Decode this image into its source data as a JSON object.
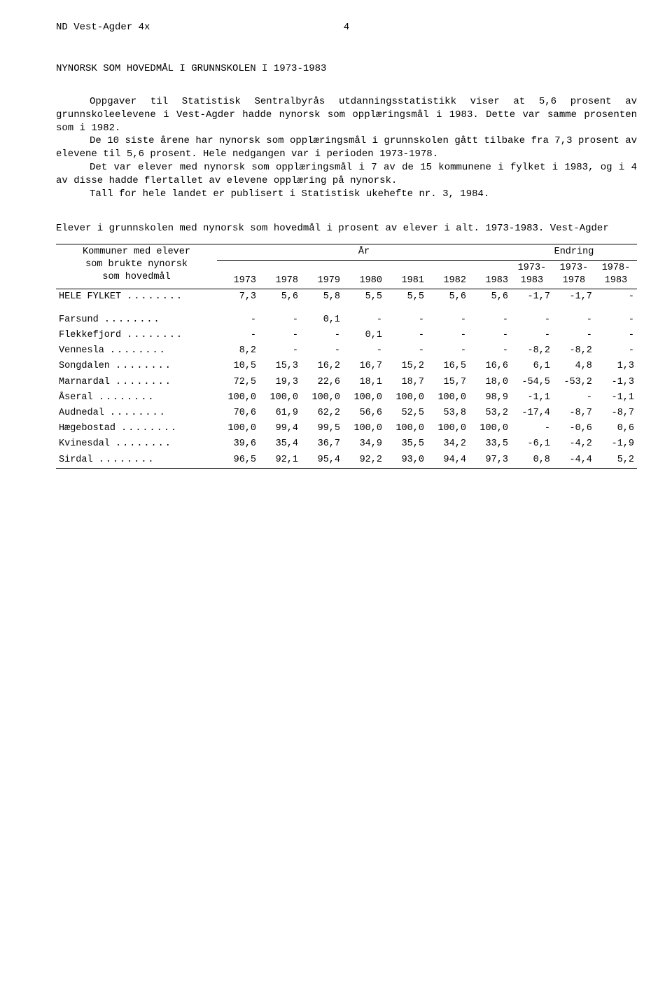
{
  "header": {
    "left": "ND  Vest-Agder  4x",
    "page": "4"
  },
  "title": "NYNORSK SOM HOVEDMÅL I GRUNNSKOLEN I 1973-1983",
  "paragraphs": [
    "Oppgaver til Statistisk Sentralbyrås utdanningsstatistikk viser at 5,6 prosent av grunnskoleelevene i Vest-Agder hadde nynorsk som opplæringsmål i 1983. Dette var samme prosenten som i 1982.",
    "De 10 siste årene har nynorsk som opplæringsmål i grunnskolen gått tilbake fra 7,3 prosent av elevene til 5,6 prosent. Hele nedgangen var i perioden 1973-1978.",
    "Det var elever med nynorsk som opplæringsmål i 7 av de 15 kommunene i fylket i 1983, og i 4 av disse hadde flertallet av elevene opplæring på nynorsk.",
    "Tall for hele landet er publisert i Statistisk ukehefte nr. 3, 1984."
  ],
  "table": {
    "caption": "Elever i grunnskolen med nynorsk som hovedmål i prosent av elever i alt.  1973-1983.  Vest-Agder",
    "stub_lines": [
      "Kommuner med elever",
      "som brukte nynorsk",
      "som hovedmål"
    ],
    "year_group": "År",
    "change_group": "Endring",
    "year_cols": [
      "1973",
      "1978",
      "1979",
      "1980",
      "1981",
      "1982",
      "1983"
    ],
    "change_cols": [
      {
        "top": "1973-",
        "bot": "1983"
      },
      {
        "top": "1973-",
        "bot": "1978"
      },
      {
        "top": "1978-",
        "bot": "1983"
      }
    ],
    "rows": [
      {
        "label": "HELE FYLKET",
        "v": [
          "7,3",
          "5,6",
          "5,8",
          "5,5",
          "5,5",
          "5,6",
          "5,6",
          "-1,7",
          "-1,7",
          "-"
        ],
        "gap_after": true
      },
      {
        "label": "Farsund",
        "v": [
          "-",
          "-",
          "0,1",
          "-",
          "-",
          "-",
          "-",
          "-",
          "-",
          "-"
        ]
      },
      {
        "label": "Flekkefjord",
        "v": [
          "-",
          "-",
          "-",
          "0,1",
          "-",
          "-",
          "-",
          "-",
          "-",
          "-"
        ]
      },
      {
        "label": "Vennesla",
        "v": [
          "8,2",
          "-",
          "-",
          "-",
          "-",
          "-",
          "-",
          "-8,2",
          "-8,2",
          "-"
        ]
      },
      {
        "label": "Songdalen",
        "v": [
          "10,5",
          "15,3",
          "16,2",
          "16,7",
          "15,2",
          "16,5",
          "16,6",
          "6,1",
          "4,8",
          "1,3"
        ]
      },
      {
        "label": "Marnardal",
        "v": [
          "72,5",
          "19,3",
          "22,6",
          "18,1",
          "18,7",
          "15,7",
          "18,0",
          "-54,5",
          "-53,2",
          "-1,3"
        ]
      },
      {
        "label": "Åseral",
        "v": [
          "100,0",
          "100,0",
          "100,0",
          "100,0",
          "100,0",
          "100,0",
          "98,9",
          "-1,1",
          "-",
          "-1,1"
        ]
      },
      {
        "label": "Audnedal",
        "v": [
          "70,6",
          "61,9",
          "62,2",
          "56,6",
          "52,5",
          "53,8",
          "53,2",
          "-17,4",
          "-8,7",
          "-8,7"
        ]
      },
      {
        "label": "Hægebostad",
        "v": [
          "100,0",
          "99,4",
          "99,5",
          "100,0",
          "100,0",
          "100,0",
          "100,0",
          "-",
          "-0,6",
          "0,6"
        ]
      },
      {
        "label": "Kvinesdal",
        "v": [
          "39,6",
          "35,4",
          "36,7",
          "34,9",
          "35,5",
          "34,2",
          "33,5",
          "-6,1",
          "-4,2",
          "-1,9"
        ]
      },
      {
        "label": "Sirdal",
        "v": [
          "96,5",
          "92,1",
          "95,4",
          "92,2",
          "93,0",
          "94,4",
          "97,3",
          "0,8",
          "-4,4",
          "5,2"
        ]
      }
    ]
  }
}
